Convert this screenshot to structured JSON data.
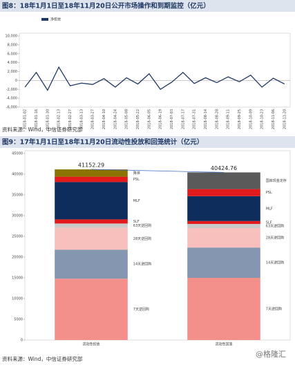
{
  "chart_data": [
    {
      "type": "line",
      "title": "图8：18年1月1日至18年11月20日公开市场操作和到期监控（亿元）",
      "source": "资料来源：Wind，中信证券研究部",
      "categories": [
        "2018-01-02",
        "2018-01-16",
        "2018-01-30",
        "2018-02-13",
        "2018-02-27",
        "2018-03-13",
        "2018-03-27",
        "2018-04-10",
        "2018-04-24",
        "2018-05-08",
        "2018-05-22",
        "2018-06-05",
        "2018-06-19",
        "2018-07-03",
        "2018-07-17",
        "2018-07-31",
        "2018-08-14",
        "2018-08-28",
        "2018-09-11",
        "2018-09-25",
        "2018-10-09",
        "2018-10-23",
        "2018-11-06",
        "2018-11-20"
      ],
      "series": [
        {
          "name": "净投放",
          "color": "#1f3864",
          "values": [
            -1500,
            1800,
            -2200,
            3000,
            -1200,
            -600,
            -900,
            400,
            -1500,
            600,
            -800,
            1500,
            -2000,
            -400,
            1800,
            -700,
            600,
            -500,
            800,
            -300,
            1200,
            -1500,
            500,
            -800
          ]
        }
      ],
      "ylim": [
        -6000,
        10000
      ],
      "yticks": [
        {
          "value": -6000,
          "label": "-6,000"
        },
        {
          "value": -4000,
          "label": "-4,000"
        },
        {
          "value": -2000,
          "label": "-2,000"
        },
        0,
        {
          "value": 2000,
          "label": "2,000"
        },
        {
          "value": 4000,
          "label": "4,000"
        },
        {
          "value": 6000,
          "label": "6,000"
        },
        {
          "value": 8000,
          "label": "8,000"
        },
        {
          "value": 10000,
          "label": "10,000"
        }
      ],
      "grid": false
    },
    {
      "type": "stacked-bar",
      "title": "图9：17年1月1日至18年11月20日流动性投放和回笼统计（亿元）",
      "source": "资料来源：Wind，中信证券研究部",
      "watermark": "@格隆汇",
      "categories": [
        "流动性投放",
        "流动性回笼"
      ],
      "series": [
        {
          "name": "7天逆回购",
          "color": "#f4908b",
          "values": [
            14800,
            15000
          ]
        },
        {
          "name": "14天逆回购",
          "color": "#8496b0",
          "values": [
            7000,
            7300
          ]
        },
        {
          "name": "28天逆回购",
          "color": "#f8c0bd",
          "values": [
            5300,
            4700
          ]
        },
        {
          "name": "63天逆回购",
          "color": "#c9c9c9",
          "values": [
            1000,
            1000
          ]
        },
        {
          "name": "SLF",
          "color": "#e31a1c",
          "values": [
            1000,
            700
          ]
        },
        {
          "name": "MLF",
          "color": "#0f2d5c",
          "values": [
            9000,
            6000
          ]
        },
        {
          "name": "PSL",
          "color": "#e31a1c",
          "values": [
            1300,
            1700
          ]
        },
        {
          "name": "降准",
          "color": "#8b7300",
          "values": [
            1752.29,
            0
          ]
        },
        {
          "name": "国库现金定存",
          "color": "#5a5a5a",
          "values": [
            0,
            4024.76
          ]
        }
      ],
      "totals": [
        41152.29,
        40424.76
      ],
      "ylim": [
        0,
        45000
      ],
      "yticks": [
        0,
        5000,
        10000,
        15000,
        20000,
        25000,
        30000,
        35000,
        40000,
        45000
      ]
    }
  ]
}
